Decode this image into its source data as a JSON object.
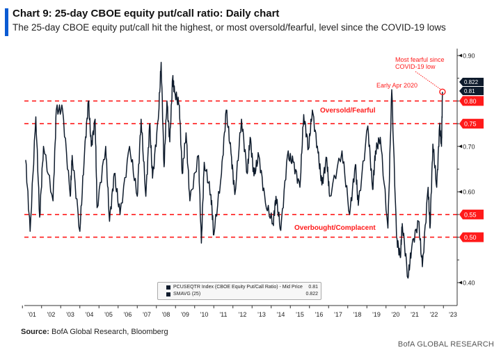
{
  "title": "Chart 9: 25-day CBOE equity put/call ratio: Daily chart",
  "subtitle": "The 25-day CBOE equity put/call hit the highest, or most oversold/fearful, level since the COVID-19 lows",
  "source_label": "Source:",
  "source_text": "BofA Global Research, Bloomberg",
  "footer": "BofA GLOBAL RESEARCH",
  "colors": {
    "line": "#0e1b2c",
    "threshold": "#ff1a1a",
    "accent": "#0a5bd3"
  },
  "chart_data": {
    "type": "line",
    "title": "",
    "xlabel": "",
    "ylabel": "",
    "ylim": [
      0.38,
      0.92
    ],
    "xlim": [
      2000.6,
      2023.2
    ],
    "grid": false,
    "y_ticks": [
      "0.90",
      "0.70",
      "0.60",
      "0.40"
    ],
    "y_ticks_values": [
      0.9,
      0.7,
      0.6,
      0.4
    ],
    "x_ticks": [
      "'01",
      "'02",
      "'03",
      "'04",
      "'05",
      "'06",
      "'07",
      "'08",
      "'09",
      "'10",
      "'11",
      "'12",
      "'13",
      "'14",
      "'15",
      "'16",
      "'17",
      "'18",
      "'19",
      "'20",
      "'21",
      "'22",
      "'23"
    ],
    "thresholds": [
      {
        "value": 0.8,
        "label": "0.80"
      },
      {
        "value": 0.75,
        "label": "0.75"
      },
      {
        "value": 0.55,
        "label": "0.55"
      },
      {
        "value": 0.5,
        "label": "0.50"
      }
    ],
    "last_value_tags": [
      "0.822",
      "0.81"
    ],
    "zone_labels": {
      "upper": "Oversold/Fearful",
      "lower": "Overbought/Complacent"
    },
    "annotations": [
      {
        "text": "Early Apr 2020",
        "x": 2019.8,
        "y": 0.825
      },
      {
        "text_line1": "Most fearful since",
        "text_line2": "COVID-19 low",
        "x": 2022.45,
        "y": 0.82
      }
    ],
    "legend": {
      "placement": "bottom-center",
      "entries": [
        {
          "name": "PCUSEQTR Index (CBOE Equity Put/Call Ratio) - Mid Price",
          "value": "0.81"
        },
        {
          "name": "SMAVG (25)",
          "value": "0.822"
        }
      ]
    },
    "series": [
      {
        "x": [
          2000.67,
          2000.9,
          2001.2,
          2001.4,
          2001.6,
          2002.1,
          2002.27,
          2002.6,
          2003.0,
          2003.1,
          2003.5,
          2003.75,
          2003.95,
          2004.1,
          2004.3,
          2004.4,
          2004.85,
          2005.05,
          2005.3,
          2005.6,
          2006.1,
          2006.5,
          2006.7,
          2006.95,
          2007.15,
          2007.3,
          2007.6,
          2007.75,
          2007.9,
          2008.05,
          2008.2,
          2008.35,
          2008.45,
          2008.7,
          2008.85,
          2009.05,
          2009.25,
          2009.7,
          2009.85,
          2010.0,
          2010.35,
          2010.5,
          2010.9,
          2011.15,
          2011.4,
          2011.6,
          2011.95,
          2012.25,
          2012.4,
          2012.6,
          2012.85,
          2013.2,
          2013.6,
          2013.75,
          2014.0,
          2014.35,
          2014.65,
          2015.0,
          2015.2,
          2015.45,
          2015.65,
          2015.95,
          2016.15,
          2016.4,
          2016.55,
          2017.2,
          2017.6,
          2017.9,
          2018.05,
          2018.55,
          2018.8,
          2018.95,
          2019.2,
          2019.6,
          2019.8,
          2020.05,
          2020.25,
          2020.35,
          2020.65,
          2020.85,
          2021.2,
          2021.4,
          2021.7,
          2021.8,
          2021.95,
          2022.15,
          2022.3,
          2022.4,
          2022.45
        ],
        "values": [
          0.67,
          0.513,
          0.765,
          0.544,
          0.7,
          0.58,
          0.78,
          0.78,
          0.59,
          0.68,
          0.513,
          0.69,
          0.8,
          0.7,
          0.76,
          0.565,
          0.7,
          0.535,
          0.64,
          0.55,
          0.7,
          0.59,
          0.76,
          0.59,
          0.75,
          0.63,
          0.76,
          0.885,
          0.655,
          0.8,
          0.71,
          0.85,
          0.82,
          0.79,
          0.64,
          0.73,
          0.58,
          0.68,
          0.487,
          0.665,
          0.594,
          0.505,
          0.64,
          0.78,
          0.685,
          0.594,
          0.76,
          0.64,
          0.72,
          0.635,
          0.68,
          0.575,
          0.53,
          0.59,
          0.515,
          0.68,
          0.665,
          0.61,
          0.77,
          0.695,
          0.78,
          0.685,
          0.615,
          0.675,
          0.59,
          0.69,
          0.55,
          0.66,
          0.57,
          0.745,
          0.605,
          0.69,
          0.72,
          0.52,
          0.825,
          0.5,
          0.455,
          0.53,
          0.41,
          0.48,
          0.535,
          0.435,
          0.61,
          0.52,
          0.705,
          0.61,
          0.745,
          0.7,
          0.82
        ]
      }
    ]
  }
}
